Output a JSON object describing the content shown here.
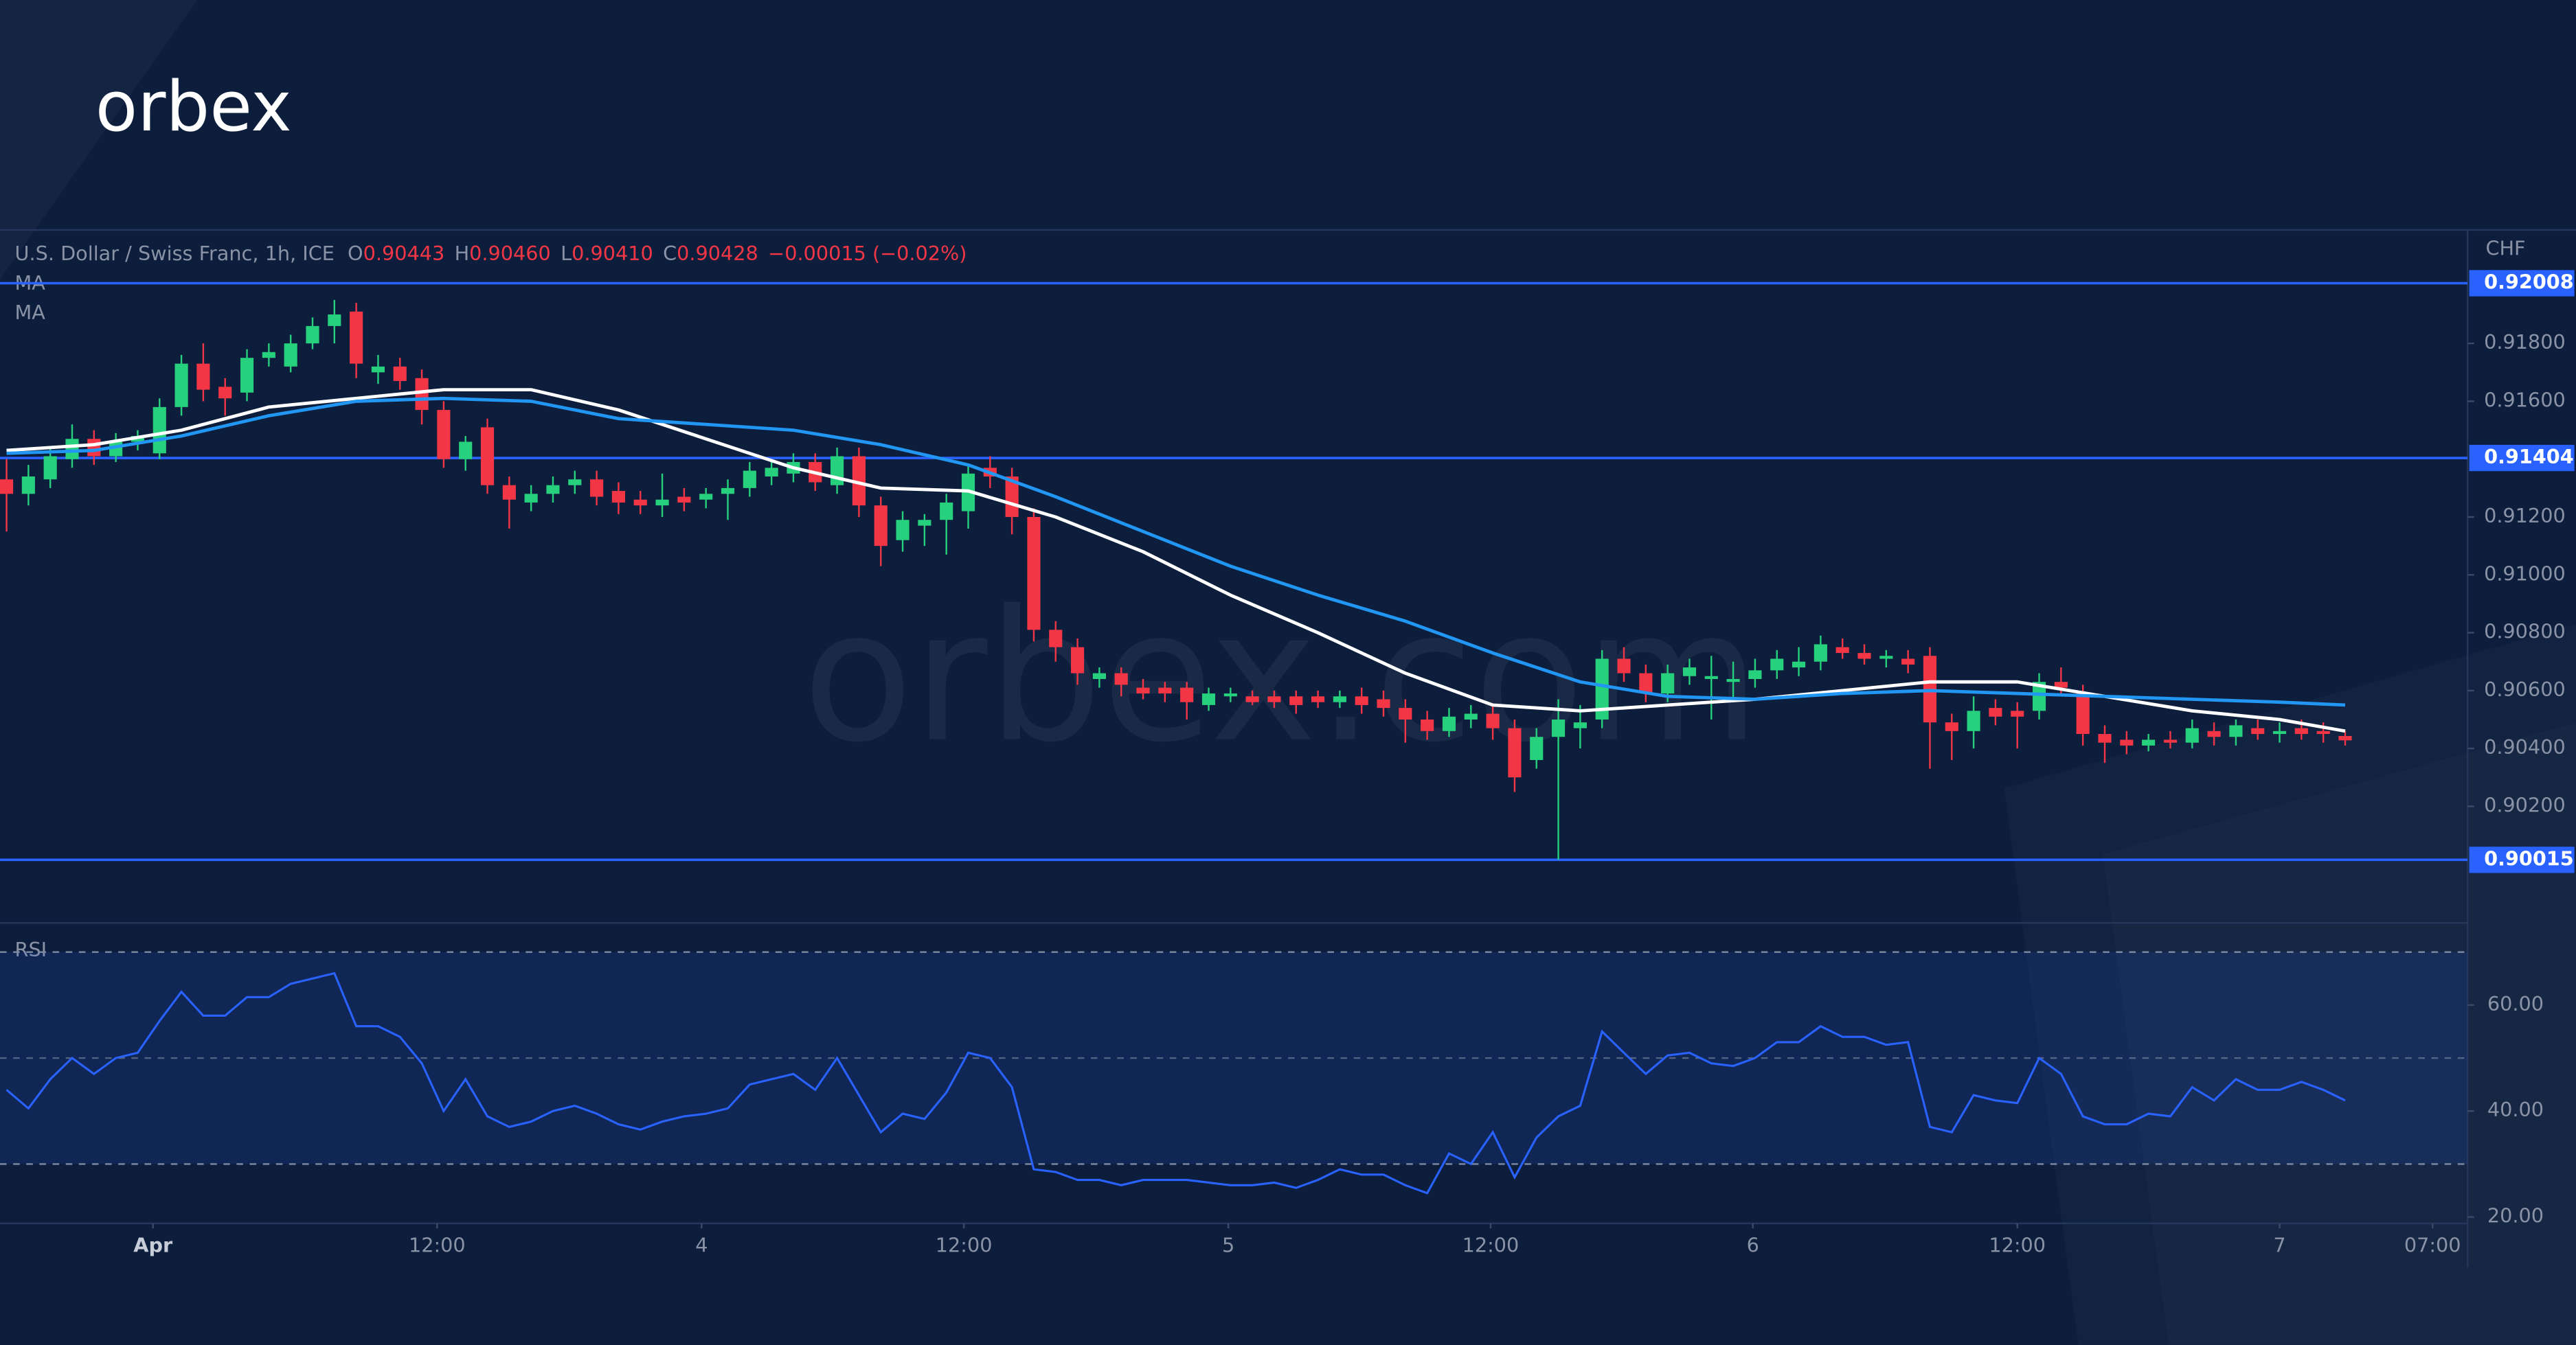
{
  "brand": "orbex",
  "watermark": "orbex.com",
  "chart_data": {
    "type": "candlestick",
    "legend": {
      "symbol": "U.S. Dollar / Swiss Franc, 1h, ICE",
      "keys": [
        "O",
        "H",
        "L",
        "C"
      ],
      "values": [
        "0.90443",
        "0.90460",
        "0.90410",
        "0.90428"
      ],
      "change": "−0.00015 (−0.02%)"
    },
    "currency": "CHF",
    "grid": false,
    "xlim": [
      -0.3,
      112.6
    ],
    "xticks": [
      {
        "value": 6.7,
        "label": "Apr"
      },
      {
        "value": 19.7,
        "label": "12:00"
      },
      {
        "value": 31.8,
        "label": "4"
      },
      {
        "value": 43.8,
        "label": "12:00"
      },
      {
        "value": 55.9,
        "label": "5"
      },
      {
        "value": 67.9,
        "label": "12:00"
      },
      {
        "value": 79.9,
        "label": "6"
      },
      {
        "value": 92,
        "label": "12:00"
      },
      {
        "value": 104,
        "label": "7"
      },
      {
        "value": 111,
        "label": "07:00"
      }
    ],
    "ylim": [
      0.89797,
      0.92192
    ],
    "yticks": [
      {
        "value": 0.902,
        "label": "0.90200"
      },
      {
        "value": 0.904,
        "label": "0.90400"
      },
      {
        "value": 0.906,
        "label": "0.90600"
      },
      {
        "value": 0.908,
        "label": "0.90800"
      },
      {
        "value": 0.91,
        "label": "0.91000"
      },
      {
        "value": 0.912,
        "label": "0.91200"
      },
      {
        "value": 0.916,
        "label": "0.91600"
      },
      {
        "value": 0.918,
        "label": "0.91800"
      }
    ],
    "levels": {
      "values": [
        0.92008,
        0.91404,
        0.90015
      ],
      "color": "#2962ff"
    },
    "candles": {
      "up_color": "#26d07c",
      "down_color": "#f23645",
      "ohlc": [
        [
          0.9133,
          0.914,
          0.9115,
          0.9128
        ],
        [
          0.9128,
          0.9138,
          0.9124,
          0.9134
        ],
        [
          0.9133,
          0.9144,
          0.913,
          0.9141
        ],
        [
          0.914,
          0.9152,
          0.9137,
          0.9147
        ],
        [
          0.9147,
          0.915,
          0.9138,
          0.9141
        ],
        [
          0.9141,
          0.9149,
          0.9139,
          0.9146
        ],
        [
          0.9146,
          0.915,
          0.9143,
          0.9148
        ],
        [
          0.9142,
          0.9161,
          0.914,
          0.9158
        ],
        [
          0.9158,
          0.9176,
          0.9155,
          0.9173
        ],
        [
          0.9173,
          0.918,
          0.916,
          0.9164
        ],
        [
          0.9165,
          0.9168,
          0.9155,
          0.9161
        ],
        [
          0.9163,
          0.9178,
          0.916,
          0.9175
        ],
        [
          0.9175,
          0.918,
          0.9172,
          0.9177
        ],
        [
          0.9172,
          0.9183,
          0.917,
          0.918
        ],
        [
          0.918,
          0.9189,
          0.9178,
          0.9186
        ],
        [
          0.9186,
          0.9195,
          0.918,
          0.919
        ],
        [
          0.9191,
          0.9194,
          0.9168,
          0.9173
        ],
        [
          0.917,
          0.9176,
          0.9166,
          0.9172
        ],
        [
          0.9172,
          0.9175,
          0.9164,
          0.9167
        ],
        [
          0.9168,
          0.9171,
          0.9152,
          0.9157
        ],
        [
          0.9157,
          0.916,
          0.9137,
          0.914
        ],
        [
          0.914,
          0.9148,
          0.9136,
          0.9146
        ],
        [
          0.9151,
          0.9154,
          0.9128,
          0.9131
        ],
        [
          0.9131,
          0.9134,
          0.9116,
          0.9126
        ],
        [
          0.9125,
          0.9131,
          0.9122,
          0.9128
        ],
        [
          0.9128,
          0.9134,
          0.9125,
          0.9131
        ],
        [
          0.9131,
          0.9136,
          0.9128,
          0.9133
        ],
        [
          0.9133,
          0.9136,
          0.9124,
          0.9127
        ],
        [
          0.9129,
          0.9132,
          0.9121,
          0.9125
        ],
        [
          0.9126,
          0.9129,
          0.9121,
          0.9124
        ],
        [
          0.9124,
          0.9135,
          0.912,
          0.9126
        ],
        [
          0.9127,
          0.913,
          0.9122,
          0.9125
        ],
        [
          0.9126,
          0.913,
          0.9123,
          0.9128
        ],
        [
          0.9128,
          0.9133,
          0.9119,
          0.913
        ],
        [
          0.913,
          0.9139,
          0.9127,
          0.9136
        ],
        [
          0.9134,
          0.914,
          0.9131,
          0.9137
        ],
        [
          0.9135,
          0.9142,
          0.9132,
          0.9139
        ],
        [
          0.9139,
          0.9142,
          0.9129,
          0.9132
        ],
        [
          0.9131,
          0.9144,
          0.9128,
          0.9141
        ],
        [
          0.9141,
          0.9144,
          0.912,
          0.9124
        ],
        [
          0.9124,
          0.9127,
          0.9103,
          0.911
        ],
        [
          0.9112,
          0.9122,
          0.9108,
          0.9119
        ],
        [
          0.9117,
          0.9121,
          0.911,
          0.9119
        ],
        [
          0.9119,
          0.9128,
          0.9107,
          0.9125
        ],
        [
          0.9122,
          0.9138,
          0.9116,
          0.9135
        ],
        [
          0.9137,
          0.9141,
          0.913,
          0.9134
        ],
        [
          0.9134,
          0.9137,
          0.9114,
          0.912
        ],
        [
          0.912,
          0.9123,
          0.9077,
          0.9081
        ],
        [
          0.9081,
          0.9084,
          0.907,
          0.9075
        ],
        [
          0.9075,
          0.9078,
          0.9062,
          0.9066
        ],
        [
          0.9064,
          0.9068,
          0.9061,
          0.9066
        ],
        [
          0.9066,
          0.9068,
          0.9058,
          0.9062
        ],
        [
          0.9061,
          0.9064,
          0.9057,
          0.9059
        ],
        [
          0.9061,
          0.9063,
          0.9056,
          0.9059
        ],
        [
          0.9061,
          0.9063,
          0.905,
          0.9056
        ],
        [
          0.9055,
          0.9061,
          0.9053,
          0.9059
        ],
        [
          0.9058,
          0.9061,
          0.9056,
          0.9059
        ],
        [
          0.9058,
          0.906,
          0.9055,
          0.9056
        ],
        [
          0.9058,
          0.906,
          0.9054,
          0.9056
        ],
        [
          0.9058,
          0.906,
          0.9052,
          0.9055
        ],
        [
          0.9058,
          0.906,
          0.9054,
          0.9056
        ],
        [
          0.9056,
          0.906,
          0.9054,
          0.9058
        ],
        [
          0.9058,
          0.9061,
          0.9052,
          0.9055
        ],
        [
          0.9057,
          0.906,
          0.9051,
          0.9054
        ],
        [
          0.9054,
          0.9057,
          0.9042,
          0.905
        ],
        [
          0.905,
          0.9053,
          0.9043,
          0.9046
        ],
        [
          0.9046,
          0.9054,
          0.9044,
          0.9051
        ],
        [
          0.905,
          0.9055,
          0.9047,
          0.9052
        ],
        [
          0.9052,
          0.9055,
          0.9043,
          0.9047
        ],
        [
          0.9047,
          0.905,
          0.9025,
          0.903
        ],
        [
          0.9036,
          0.9047,
          0.9033,
          0.9044
        ],
        [
          0.9044,
          0.9057,
          0.90015,
          0.905
        ],
        [
          0.9047,
          0.9055,
          0.904,
          0.9049
        ],
        [
          0.905,
          0.9074,
          0.9047,
          0.9071
        ],
        [
          0.9071,
          0.9075,
          0.9063,
          0.9066
        ],
        [
          0.9066,
          0.9069,
          0.9056,
          0.9059
        ],
        [
          0.9059,
          0.9069,
          0.9056,
          0.9066
        ],
        [
          0.9065,
          0.9071,
          0.9062,
          0.9068
        ],
        [
          0.9064,
          0.9072,
          0.905,
          0.9065
        ],
        [
          0.9063,
          0.907,
          0.9057,
          0.9064
        ],
        [
          0.9064,
          0.9071,
          0.9061,
          0.9067
        ],
        [
          0.9067,
          0.9074,
          0.9064,
          0.9071
        ],
        [
          0.9068,
          0.9075,
          0.9065,
          0.907
        ],
        [
          0.907,
          0.9079,
          0.9067,
          0.9076
        ],
        [
          0.9075,
          0.9078,
          0.9071,
          0.9073
        ],
        [
          0.9073,
          0.9076,
          0.9069,
          0.9071
        ],
        [
          0.9071,
          0.9074,
          0.9068,
          0.9072
        ],
        [
          0.9071,
          0.9074,
          0.9066,
          0.9069
        ],
        [
          0.9072,
          0.9075,
          0.9033,
          0.9049
        ],
        [
          0.9049,
          0.9052,
          0.9036,
          0.9046
        ],
        [
          0.9046,
          0.9058,
          0.904,
          0.9053
        ],
        [
          0.9054,
          0.9057,
          0.9048,
          0.9051
        ],
        [
          0.9053,
          0.9056,
          0.904,
          0.9051
        ],
        [
          0.9053,
          0.9066,
          0.905,
          0.9063
        ],
        [
          0.9063,
          0.9068,
          0.9058,
          0.9061
        ],
        [
          0.9059,
          0.9062,
          0.9041,
          0.9045
        ],
        [
          0.9045,
          0.9048,
          0.9035,
          0.9042
        ],
        [
          0.9043,
          0.9046,
          0.9038,
          0.9041
        ],
        [
          0.9041,
          0.9045,
          0.9039,
          0.9043
        ],
        [
          0.9043,
          0.9046,
          0.904,
          0.9042
        ],
        [
          0.9042,
          0.905,
          0.904,
          0.9047
        ],
        [
          0.9046,
          0.9049,
          0.9041,
          0.9044
        ],
        [
          0.9044,
          0.905,
          0.9041,
          0.9048
        ],
        [
          0.9047,
          0.905,
          0.9043,
          0.9045
        ],
        [
          0.9045,
          0.9049,
          0.9042,
          0.9046
        ],
        [
          0.9047,
          0.905,
          0.9043,
          0.9045
        ],
        [
          0.9046,
          0.9049,
          0.9042,
          0.9045
        ],
        [
          0.90443,
          0.9046,
          0.9041,
          0.90428
        ]
      ]
    },
    "series": [
      {
        "name": "MA",
        "color": "#ffffff",
        "x": [
          0,
          4,
          8,
          12,
          16,
          20,
          24,
          28,
          32,
          36,
          40,
          44,
          48,
          52,
          56,
          60,
          64,
          68,
          72,
          76,
          80,
          84,
          88,
          92,
          96,
          100,
          104,
          107
        ],
        "values": [
          0.9143,
          0.9145,
          0.915,
          0.9158,
          0.9161,
          0.9164,
          0.9164,
          0.9157,
          0.9147,
          0.9137,
          0.913,
          0.9129,
          0.912,
          0.9108,
          0.9093,
          0.908,
          0.9066,
          0.9055,
          0.9053,
          0.9055,
          0.9057,
          0.906,
          0.9063,
          0.9063,
          0.9058,
          0.9053,
          0.905,
          0.9046
        ]
      },
      {
        "name": "MA",
        "color": "#2196f3",
        "x": [
          0,
          4,
          8,
          12,
          16,
          20,
          24,
          28,
          32,
          36,
          40,
          44,
          48,
          52,
          56,
          60,
          64,
          68,
          72,
          76,
          80,
          84,
          88,
          92,
          96,
          100,
          104,
          107
        ],
        "values": [
          0.9142,
          0.9143,
          0.9148,
          0.9155,
          0.916,
          0.9161,
          0.916,
          0.9154,
          0.9152,
          0.915,
          0.9145,
          0.9138,
          0.9127,
          0.9115,
          0.9103,
          0.9093,
          0.9084,
          0.9073,
          0.9063,
          0.9058,
          0.9057,
          0.9059,
          0.906,
          0.9059,
          0.9058,
          0.9057,
          0.9056,
          0.9055
        ]
      }
    ],
    "rsi": {
      "name": "RSI",
      "color": "#2962ff",
      "ylim": [
        18.8,
        75.5
      ],
      "yticks": [
        {
          "value": 20,
          "label": "20.00"
        },
        {
          "value": 40,
          "label": "40.00"
        },
        {
          "value": 60,
          "label": "60.00"
        }
      ],
      "band": [
        30,
        70
      ],
      "mid": 50,
      "values": [
        44,
        40.5,
        46,
        50,
        47,
        50,
        51,
        57,
        62.5,
        58,
        58,
        61.5,
        61.5,
        64,
        65,
        66,
        56,
        56,
        54,
        49,
        40,
        46,
        39,
        37,
        38,
        40,
        41,
        39.5,
        37.5,
        36.5,
        38,
        39,
        39.5,
        40.5,
        45,
        46,
        47,
        44,
        50,
        43,
        36,
        39.5,
        38.5,
        43.5,
        51,
        50,
        44.5,
        29,
        28.5,
        27,
        27,
        26,
        27,
        27,
        27,
        26.5,
        26,
        26,
        26.5,
        25.5,
        27,
        29,
        28,
        28,
        26,
        24.5,
        32,
        30,
        36,
        27.5,
        35,
        39,
        41,
        55,
        51,
        47,
        50.5,
        51,
        49,
        48.5,
        50,
        53,
        53,
        56,
        54,
        54,
        52.5,
        53,
        37,
        36,
        43,
        42,
        41.5,
        50,
        47,
        39,
        37.5,
        37.5,
        39.5,
        39,
        44.5,
        42,
        46,
        44,
        44,
        45.5,
        44,
        42
      ]
    }
  }
}
